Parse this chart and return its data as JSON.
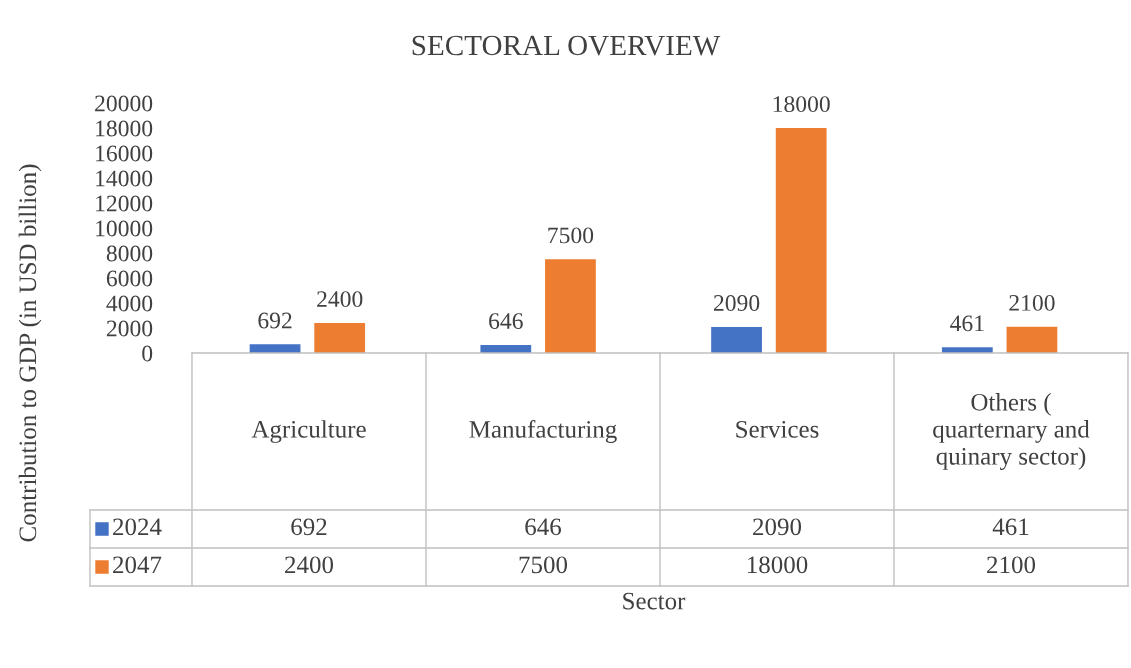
{
  "chart_data": {
    "type": "bar",
    "title": "SECTORAL OVERVIEW",
    "xlabel": "Sector",
    "ylabel": "Contribution to GDP (in USD billion)",
    "categories": [
      "Agriculture",
      "Manufacturing",
      "Services",
      "Others ( quarternary and quinary sector)"
    ],
    "series": [
      {
        "name": "2024",
        "color": "#4472c4",
        "values": [
          692,
          646,
          2090,
          461
        ]
      },
      {
        "name": "2047",
        "color": "#ed7d31",
        "values": [
          2400,
          7500,
          18000,
          2100
        ]
      }
    ],
    "annotations": [
      "692",
      "646",
      "2090",
      "461",
      "2400",
      "7500",
      "18000",
      "2100"
    ],
    "ylim": [
      0,
      20000
    ],
    "yticks": [
      0,
      2000,
      4000,
      6000,
      8000,
      10000,
      12000,
      14000,
      16000,
      18000,
      20000
    ],
    "data_labels": true,
    "grid": false,
    "legend": "bottom"
  }
}
